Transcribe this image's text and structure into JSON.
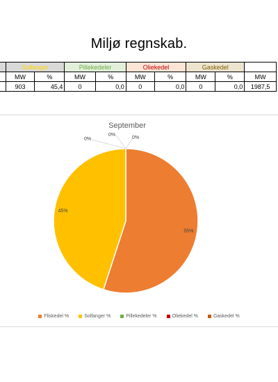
{
  "page": {
    "title": "Miljø regnskab."
  },
  "table": {
    "groups": [
      {
        "label": "",
        "color": "#000000"
      },
      {
        "label": "Solfanger",
        "color": "#ffd700"
      },
      {
        "label": "Pillekedeler",
        "color": "#70ad47"
      },
      {
        "label": "Oliekedel",
        "color": "#c00000"
      },
      {
        "label": "Gaskedel",
        "color": "#7f6000"
      },
      {
        "label": "",
        "color": "#000000"
      }
    ],
    "units": [
      "MW",
      "%",
      "MW",
      "%",
      "MW",
      "%",
      "MW",
      "%",
      "MW"
    ],
    "values": [
      "903",
      "45,4",
      "0",
      "0,0",
      "0",
      "0,0",
      "0",
      "0,0",
      "1987,5"
    ]
  },
  "chart_data": {
    "type": "pie",
    "title": "September",
    "categories": [
      "Fliskedel %",
      "Solfanger %",
      "Pillekedeler %",
      "Oliekedel %",
      "Gaskedel %"
    ],
    "values": [
      55,
      45,
      0,
      0,
      0
    ],
    "data_labels": [
      "55%",
      "45%",
      "0%",
      "0%",
      "0%"
    ],
    "colors": [
      "#ed7d31",
      "#ffc000",
      "#70ad47",
      "#c00000",
      "#c55a11"
    ],
    "legend_position": "bottom"
  }
}
